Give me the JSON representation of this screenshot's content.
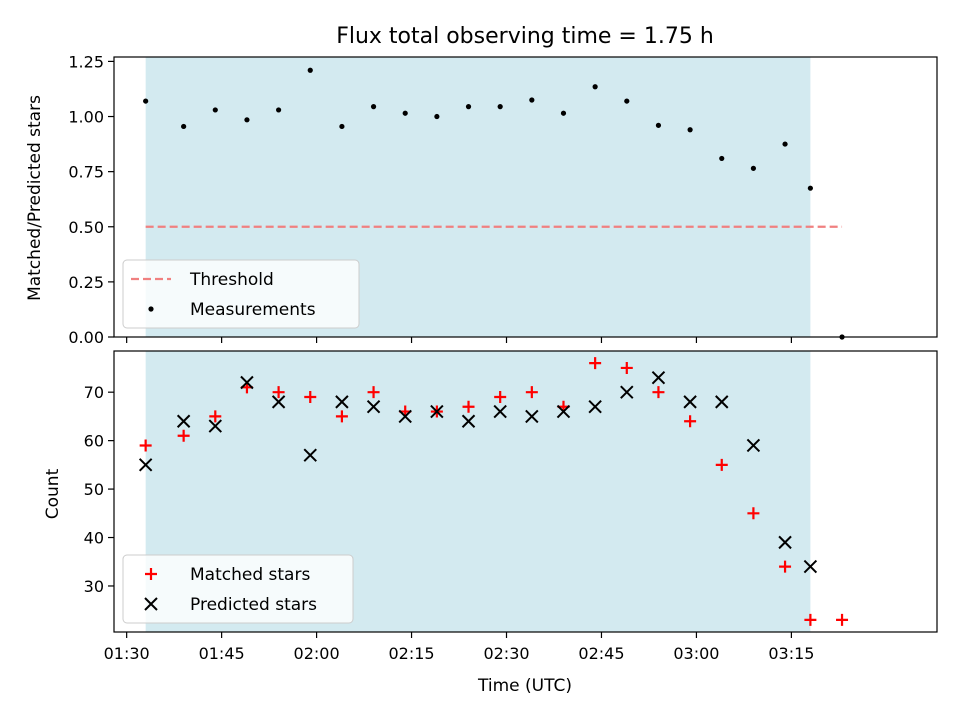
{
  "figure": {
    "title": "Flux total observing time = 1.75 h",
    "xlabel": "Time (UTC)"
  },
  "chart_data": [
    {
      "type": "scatter",
      "ylabel": "Matched/Predicted stars",
      "ylim": [
        0,
        1.27
      ],
      "yticks": [
        "0.00",
        "0.25",
        "0.50",
        "0.75",
        "1.00",
        "1.25"
      ],
      "ytick_values": [
        0,
        0.25,
        0.5,
        0.75,
        1.0,
        1.25
      ],
      "xlim": [
        88,
        218
      ],
      "shaded_span": [
        "01:33",
        "03:18"
      ],
      "shade_color": "#d3eaf0",
      "threshold": {
        "name": "Threshold",
        "value": 0.5,
        "x": [
          "01:33",
          "03:23"
        ],
        "color": "#f08080"
      },
      "series": [
        {
          "name": "Measurements",
          "marker": "dot",
          "color": "#000000",
          "x": [
            "01:33",
            "01:39",
            "01:44",
            "01:49",
            "01:54",
            "01:59",
            "02:04",
            "02:09",
            "02:14",
            "02:19",
            "02:24",
            "02:29",
            "02:34",
            "02:39",
            "02:44",
            "02:49",
            "02:54",
            "02:59",
            "03:04",
            "03:09",
            "03:14",
            "03:18",
            "03:23"
          ],
          "y": [
            1.07,
            0.955,
            1.03,
            0.985,
            1.03,
            1.21,
            0.955,
            1.045,
            1.015,
            1.0,
            1.045,
            1.045,
            1.075,
            1.015,
            1.135,
            1.07,
            0.96,
            0.94,
            0.81,
            0.765,
            0.875,
            0.675,
            0.0
          ]
        }
      ],
      "legend": {
        "placement": "lower-left",
        "entries": [
          "Threshold",
          "Measurements"
        ]
      }
    },
    {
      "type": "scatter",
      "ylabel": "Count",
      "ylim": [
        20.5,
        78.5
      ],
      "yticks": [
        "30",
        "40",
        "50",
        "60",
        "70"
      ],
      "ytick_values": [
        30,
        40,
        50,
        60,
        70
      ],
      "xlim": [
        88,
        218
      ],
      "xticks": [
        "01:30",
        "01:45",
        "02:00",
        "02:15",
        "02:30",
        "02:45",
        "03:00",
        "03:15"
      ],
      "xtick_values": [
        90,
        105,
        120,
        135,
        150,
        165,
        180,
        195
      ],
      "shaded_span": [
        "01:33",
        "03:18"
      ],
      "shade_color": "#d3eaf0",
      "series": [
        {
          "name": "Matched stars",
          "marker": "plus",
          "color": "#ff0000",
          "x": [
            "01:33",
            "01:39",
            "01:44",
            "01:49",
            "01:54",
            "01:59",
            "02:04",
            "02:09",
            "02:14",
            "02:19",
            "02:24",
            "02:29",
            "02:34",
            "02:39",
            "02:44",
            "02:49",
            "02:54",
            "02:59",
            "03:04",
            "03:09",
            "03:14",
            "03:18",
            "03:23"
          ],
          "y": [
            59,
            61,
            65,
            71,
            70,
            69,
            65,
            70,
            66,
            66,
            67,
            69,
            70,
            67,
            76,
            75,
            70,
            64,
            55,
            45,
            34,
            23,
            23
          ]
        },
        {
          "name": "Predicted stars",
          "marker": "x",
          "color": "#000000",
          "x": [
            "01:33",
            "01:39",
            "01:44",
            "01:49",
            "01:54",
            "01:59",
            "02:04",
            "02:09",
            "02:14",
            "02:19",
            "02:24",
            "02:29",
            "02:34",
            "02:39",
            "02:44",
            "02:49",
            "02:54",
            "02:59",
            "03:04",
            "03:09",
            "03:14",
            "03:18"
          ],
          "y": [
            55,
            64,
            63,
            72,
            68,
            57,
            68,
            67,
            65,
            66,
            64,
            66,
            65,
            66,
            67,
            70,
            73,
            68,
            68,
            59,
            39,
            34
          ]
        }
      ],
      "legend": {
        "placement": "lower-left",
        "entries": [
          "Matched stars",
          "Predicted stars"
        ]
      }
    }
  ]
}
